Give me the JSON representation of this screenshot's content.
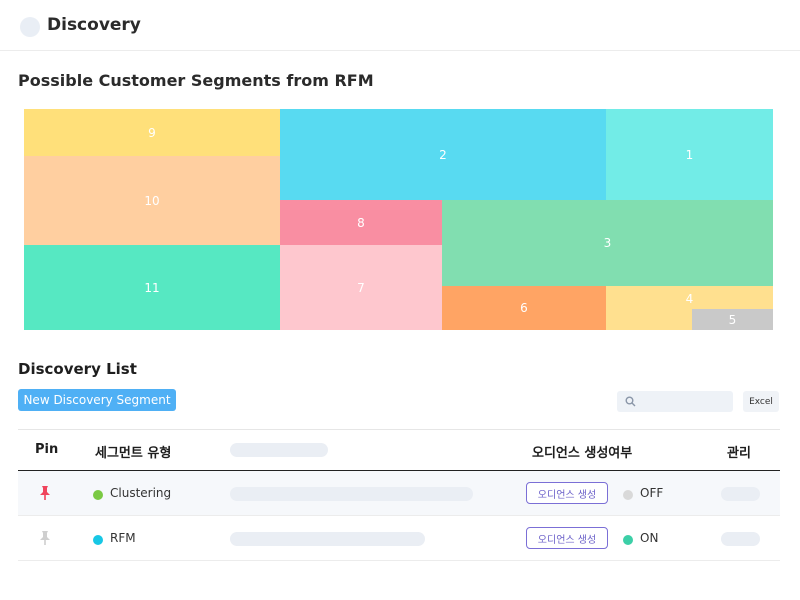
{
  "header": {
    "title": "Discovery"
  },
  "section": {
    "title": "Possible Customer Segments from RFM"
  },
  "treemap": [
    {
      "label": "9",
      "color": "#ffe07a"
    },
    {
      "label": "2",
      "color": "#58daf1"
    },
    {
      "label": "1",
      "color": "#72ece7"
    },
    {
      "label": "10",
      "color": "#ffcfa0"
    },
    {
      "label": "8",
      "color": "#f98ea2"
    },
    {
      "label": "3",
      "color": "#81deb0"
    },
    {
      "label": "11",
      "color": "#56e8c2"
    },
    {
      "label": "7",
      "color": "#fec7ce"
    },
    {
      "label": "6",
      "color": "#ffa464"
    },
    {
      "label": "4",
      "color": "#ffe08f"
    },
    {
      "label": "5",
      "color": "#c9c9c9"
    }
  ],
  "list": {
    "title": "Discovery List",
    "new_button": "New Discovery Segment",
    "excel_button": "Excel",
    "columns": {
      "pin": "Pin",
      "segment_type": "세그먼트 유형",
      "audience_status": "오디언스 생성여부",
      "manage": "관리"
    },
    "rows": [
      {
        "pinned": true,
        "pin_color": "#f0445c",
        "segment_color": "#7ac943",
        "segment": "Clustering",
        "audience_button": "오디언스 생성",
        "status_color": "#d9d9d9",
        "status": "OFF"
      },
      {
        "pinned": false,
        "pin_color": "#cfcfcf",
        "segment_color": "#17c7e5",
        "segment": "RFM",
        "audience_button": "오디언스 생성",
        "status_color": "#3ccfa7",
        "status": "ON"
      }
    ]
  }
}
